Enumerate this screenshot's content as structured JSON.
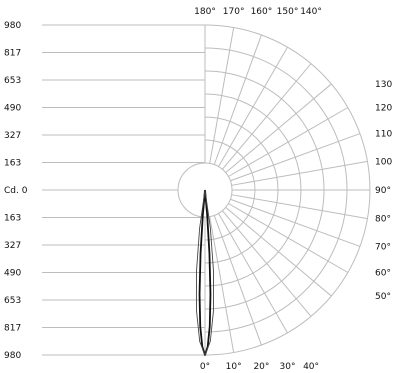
{
  "chart_data": {
    "type": "polar",
    "title": "",
    "unit_label": "Cd.",
    "radial_ticks": [
      {
        "label": "980",
        "value": 980
      },
      {
        "label": "817",
        "value": 817
      },
      {
        "label": "653",
        "value": 653
      },
      {
        "label": "490",
        "value": 490
      },
      {
        "label": "327",
        "value": 327
      },
      {
        "label": "163",
        "value": 163
      },
      {
        "label": "0",
        "value": 0
      }
    ],
    "radial_max": 980,
    "angle_labels_top": [
      {
        "label": "180°",
        "angle": 180
      },
      {
        "label": "170°",
        "angle": 170
      },
      {
        "label": "160°",
        "angle": 160
      },
      {
        "label": "150°",
        "angle": 150
      },
      {
        "label": "140°",
        "angle": 140
      }
    ],
    "angle_labels_right": [
      {
        "label": "130",
        "angle": 130
      },
      {
        "label": "120",
        "angle": 120
      },
      {
        "label": "110",
        "angle": 110
      },
      {
        "label": "100",
        "angle": 100
      },
      {
        "label": "90°",
        "angle": 90
      },
      {
        "label": "80°",
        "angle": 80
      },
      {
        "label": "70°",
        "angle": 70
      },
      {
        "label": "60°",
        "angle": 60
      },
      {
        "label": "50°",
        "angle": 50
      }
    ],
    "angle_labels_bottom": [
      {
        "label": "0°",
        "angle": 0
      },
      {
        "label": "10°",
        "angle": 10
      },
      {
        "label": "20°",
        "angle": 20
      },
      {
        "label": "30°",
        "angle": 30
      },
      {
        "label": "40°",
        "angle": 40
      }
    ],
    "grid_angle_step": 10,
    "series": [
      {
        "color": "#111111",
        "stroke": "bold",
        "points": [
          {
            "angle": 0,
            "value": 980
          },
          {
            "angle": 1,
            "value": 930
          },
          {
            "angle": 2,
            "value": 810
          },
          {
            "angle": 3,
            "value": 620
          },
          {
            "angle": 4,
            "value": 380
          },
          {
            "angle": 5,
            "value": 150
          },
          {
            "angle": 6,
            "value": 0
          }
        ]
      },
      {
        "color": "#444444",
        "stroke": "thin",
        "points": [
          {
            "angle": 0,
            "value": 980
          },
          {
            "angle": 2,
            "value": 900
          },
          {
            "angle": 4,
            "value": 720
          },
          {
            "angle": 6,
            "value": 480
          },
          {
            "angle": 8,
            "value": 230
          },
          {
            "angle": 10,
            "value": 0
          }
        ]
      }
    ],
    "grid": true
  }
}
